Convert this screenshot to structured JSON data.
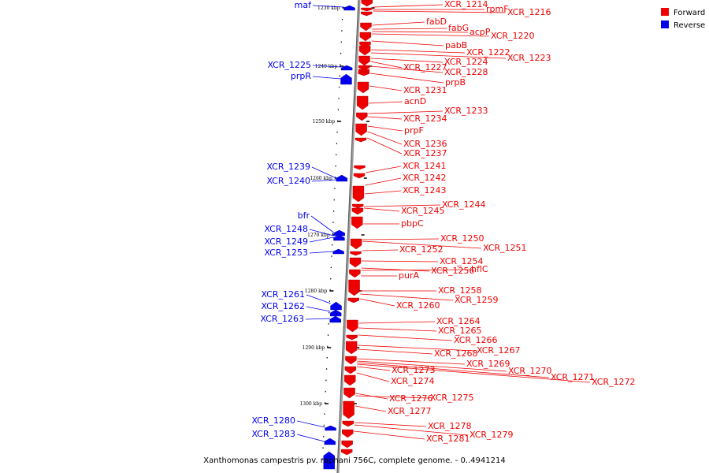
{
  "title": "Xanthomonas campestris pv. raphani 756C, complete genome. - 0..4941214",
  "legend": [
    {
      "label": "Forward",
      "color": "#ee0000"
    },
    {
      "label": "Reverse",
      "color": "#0000ee"
    }
  ],
  "colors": {
    "forward": "#ee0000",
    "reverse": "#0000ee",
    "backbone": "#909090"
  },
  "ticks": [
    "1230 kbp",
    "1240 kbp",
    "1250 kbp",
    "1260 kbp",
    "1270 kbp",
    "1280 kbp",
    "1290 kbp",
    "1300 kbp"
  ],
  "forward_labels": [
    "XCR_1214",
    "rpmF",
    "XCR_1216",
    "fabD",
    "fabG",
    "acpP",
    "XCR_1220",
    "pabB",
    "XCR_1222",
    "XCR_1223",
    "XCR_1224",
    "XCR_1227",
    "XCR_1228",
    "prpB",
    "XCR_1231",
    "acnD",
    "XCR_1233",
    "XCR_1234",
    "prpF",
    "XCR_1236",
    "XCR_1237",
    "XCR_1241",
    "XCR_1242",
    "XCR_1243",
    "XCR_1244",
    "XCR_1245",
    "pbpC",
    "XCR_1250",
    "XCR_1251",
    "XCR_1252",
    "XCR_1254",
    "XCR_1256",
    "hflC",
    "purA",
    "XCR_1258",
    "XCR_1259",
    "XCR_1260",
    "XCR_1264",
    "XCR_1265",
    "XCR_1266",
    "XCR_1267",
    "XCR_1268",
    "XCR_1269",
    "XCR_1270",
    "XCR_1271",
    "XCR_1272",
    "XCR_1273",
    "XCR_1274",
    "XCR_1275",
    "XCR_1276",
    "XCR_1277",
    "XCR_1278",
    "XCR_1279",
    "XCR_1281"
  ],
  "reverse_labels": [
    "maf",
    "XCR_1225",
    "prpR",
    "XCR_1239",
    "XCR_1240",
    "bfr",
    "XCR_1248",
    "XCR_1249",
    "XCR_1253",
    "XCR_1261",
    "XCR_1262",
    "XCR_1263",
    "XCR_1280",
    "XCR_1283"
  ]
}
